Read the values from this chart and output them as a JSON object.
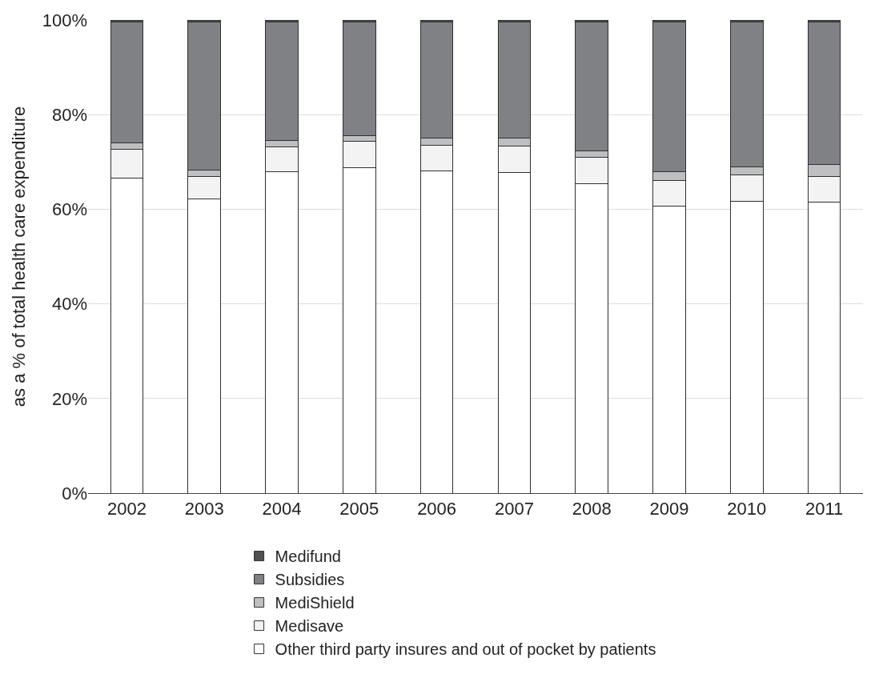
{
  "chart_data": {
    "type": "bar",
    "stacked": true,
    "ylabel": "as a % of total health care expenditure",
    "categories": [
      "2002",
      "2003",
      "2004",
      "2005",
      "2006",
      "2007",
      "2008",
      "2009",
      "2010",
      "2011"
    ],
    "series": [
      {
        "name": "Other third party insures and out of pocket by patients",
        "color": "#ffffff",
        "values": [
          66.5,
          62.1,
          67.9,
          68.8,
          68.1,
          67.7,
          65.4,
          60.7,
          61.7,
          61.5
        ]
      },
      {
        "name": "Medisave",
        "color": "#f2f3f2",
        "values": [
          6.1,
          4.9,
          5.3,
          5.6,
          5.5,
          5.7,
          5.5,
          5.4,
          5.5,
          5.5
        ]
      },
      {
        "name": "MediShield",
        "color": "#bfbfc1",
        "values": [
          1.4,
          1.3,
          1.3,
          1.1,
          1.4,
          1.6,
          1.4,
          1.8,
          1.8,
          2.4
        ]
      },
      {
        "name": "Subsidies",
        "color": "#808184",
        "values": [
          25.5,
          31.2,
          25.0,
          24.0,
          24.5,
          24.5,
          27.2,
          31.6,
          30.5,
          30.1
        ]
      },
      {
        "name": "Medifund",
        "color": "#505050",
        "values": [
          0.5,
          0.5,
          0.5,
          0.5,
          0.5,
          0.5,
          0.5,
          0.5,
          0.5,
          0.5
        ]
      }
    ],
    "ylim": [
      0,
      100
    ],
    "yticks": [
      {
        "value": 0,
        "label": "0%"
      },
      {
        "value": 20,
        "label": "20%"
      },
      {
        "value": 40,
        "label": "40%"
      },
      {
        "value": 60,
        "label": "60%"
      },
      {
        "value": 80,
        "label": "80%"
      },
      {
        "value": 100,
        "label": "100%"
      }
    ],
    "grid": "y",
    "legend": "bottom"
  }
}
